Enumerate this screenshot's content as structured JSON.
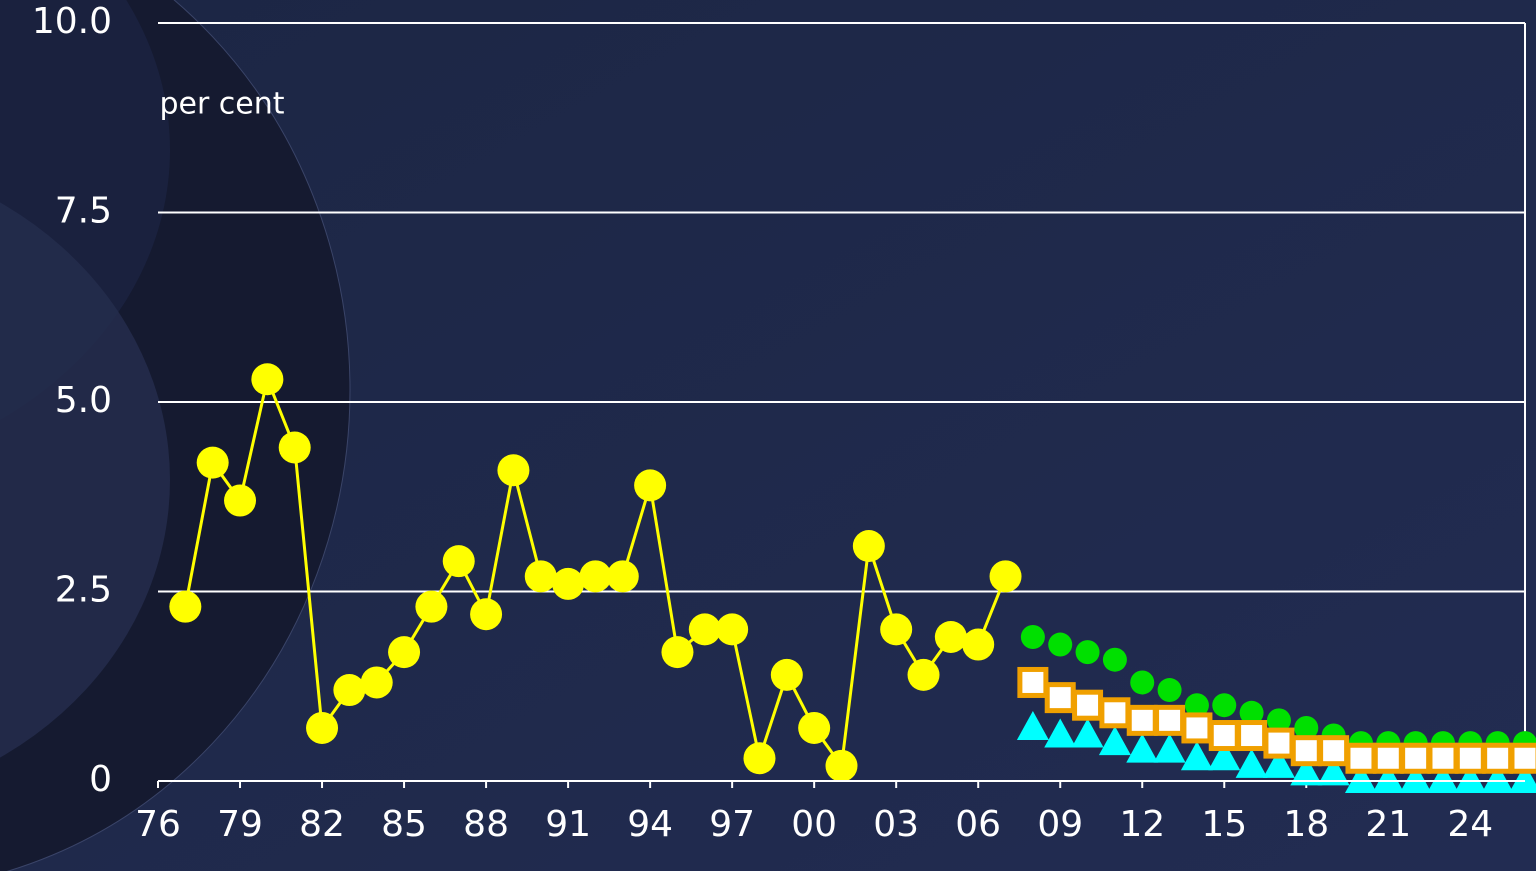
{
  "chart_data": {
    "type": "line",
    "y_label": "per cent",
    "xlim": [
      1976,
      2026
    ],
    "ylim": [
      0,
      10
    ],
    "yticks": [
      {
        "value": 0,
        "label": "0"
      },
      2.5,
      {
        "value": 5,
        "label": "5.0"
      },
      7.5,
      {
        "value": 10,
        "label": "10.0"
      }
    ],
    "xticks": [
      {
        "value": 1976,
        "label": "76"
      },
      {
        "value": 1979,
        "label": "79"
      },
      {
        "value": 1982,
        "label": "82"
      },
      {
        "value": 1985,
        "label": "85"
      },
      {
        "value": 1988,
        "label": "88"
      },
      {
        "value": 1991,
        "label": "91"
      },
      {
        "value": 1994,
        "label": "94"
      },
      {
        "value": 1997,
        "label": "97"
      },
      {
        "value": 2000,
        "label": "00"
      },
      {
        "value": 2003,
        "label": "03"
      },
      {
        "value": 2006,
        "label": "06"
      },
      {
        "value": 2009,
        "label": "09"
      },
      {
        "value": 2012,
        "label": "12"
      },
      {
        "value": 2015,
        "label": "15"
      },
      {
        "value": 2018,
        "label": "18"
      },
      {
        "value": 2021,
        "label": "21"
      },
      {
        "value": 2024,
        "label": "24"
      }
    ],
    "grid": true,
    "series": [
      {
        "color": "#ffff00",
        "marker": "circle",
        "line": true,
        "x": [
          1977,
          1978,
          1979,
          1980,
          1981,
          1982,
          1983,
          1984,
          1985,
          1986,
          1987,
          1988,
          1989,
          1990,
          1991,
          1992,
          1993,
          1994,
          1995,
          1996,
          1997,
          1998,
          1999,
          2000,
          2001,
          2002,
          2003,
          2004,
          2005,
          2006,
          2007
        ],
        "values": [
          2.3,
          4.2,
          3.7,
          5.3,
          4.4,
          0.7,
          1.2,
          1.3,
          1.7,
          2.3,
          2.9,
          2.2,
          4.1,
          2.7,
          2.6,
          2.7,
          2.7,
          3.9,
          1.7,
          2.0,
          2.0,
          0.3,
          1.4,
          0.7,
          0.2,
          3.1,
          2.0,
          1.4,
          1.9,
          1.8,
          2.7
        ]
      },
      {
        "color": "#00e000",
        "marker": "circle",
        "line": false,
        "x": [
          2008,
          2009,
          2010,
          2011,
          2012,
          2013,
          2014,
          2015,
          2016,
          2017,
          2018,
          2019,
          2020,
          2021,
          2022,
          2023,
          2024,
          2025,
          2026
        ],
        "values": [
          1.9,
          1.8,
          1.7,
          1.6,
          1.3,
          1.2,
          1.0,
          1.0,
          0.9,
          0.8,
          0.7,
          0.6,
          0.5,
          0.5,
          0.5,
          0.5,
          0.5,
          0.5,
          0.5
        ]
      },
      {
        "color": "#00ffff",
        "marker": "triangle",
        "line": false,
        "x": [
          2008,
          2009,
          2010,
          2011,
          2012,
          2013,
          2014,
          2015,
          2016,
          2017,
          2018,
          2019,
          2020,
          2021,
          2022,
          2023,
          2024,
          2025,
          2026
        ],
        "values": [
          0.7,
          0.6,
          0.6,
          0.5,
          0.4,
          0.4,
          0.3,
          0.3,
          0.2,
          0.2,
          0.1,
          0.1,
          0.0,
          0.0,
          0.0,
          0.0,
          0.0,
          0.0,
          0.0
        ]
      },
      {
        "color": "#f0a000",
        "marker": "square",
        "line": false,
        "x": [
          2008,
          2009,
          2010,
          2011,
          2012,
          2013,
          2014,
          2015,
          2016,
          2017,
          2018,
          2019,
          2020,
          2021,
          2022,
          2023,
          2024,
          2025,
          2026
        ],
        "values": [
          1.3,
          1.1,
          1.0,
          0.9,
          0.8,
          0.8,
          0.7,
          0.6,
          0.6,
          0.5,
          0.4,
          0.4,
          0.3,
          0.3,
          0.3,
          0.3,
          0.3,
          0.3,
          0.3
        ]
      }
    ]
  }
}
